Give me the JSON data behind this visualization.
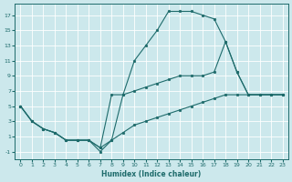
{
  "xlabel": "Humidex (Indice chaleur)",
  "background_color": "#cce8ec",
  "grid_color": "#ffffff",
  "line_color": "#1e6b6b",
  "xlim": [
    -0.5,
    23.5
  ],
  "ylim": [
    -2,
    18.5
  ],
  "xticks": [
    0,
    1,
    2,
    3,
    4,
    5,
    6,
    7,
    8,
    9,
    10,
    11,
    12,
    13,
    14,
    15,
    16,
    17,
    18,
    19,
    20,
    21,
    22,
    23
  ],
  "yticks": [
    -1,
    1,
    3,
    5,
    7,
    9,
    11,
    13,
    15,
    17
  ],
  "curve1_x": [
    0,
    1,
    2,
    3,
    4,
    5,
    6,
    7,
    8,
    9,
    10,
    11,
    12,
    13,
    14,
    15,
    16,
    17,
    18,
    19,
    20,
    21,
    22,
    23
  ],
  "curve1_y": [
    5,
    3,
    2,
    1.5,
    0.5,
    0.5,
    0.5,
    -1,
    0.5,
    6.5,
    11,
    13,
    15,
    17.5,
    17.5,
    17.5,
    17,
    16.5,
    13.5,
    9.5,
    6.5,
    6.5,
    6.5,
    6.5
  ],
  "curve2_x": [
    0,
    1,
    2,
    3,
    4,
    5,
    6,
    7,
    8,
    9,
    10,
    11,
    12,
    13,
    14,
    15,
    16,
    17,
    18,
    19,
    20,
    21,
    22,
    23
  ],
  "curve2_y": [
    5,
    3,
    2,
    1.5,
    0.5,
    0.5,
    0.5,
    -0.5,
    6.5,
    6.5,
    7.0,
    7.5,
    8.0,
    8.5,
    9.0,
    9.0,
    9.0,
    9.5,
    13.5,
    9.5,
    6.5,
    6.5,
    6.5,
    6.5
  ],
  "curve3_x": [
    0,
    1,
    2,
    3,
    4,
    5,
    6,
    7,
    8,
    9,
    10,
    11,
    12,
    13,
    14,
    15,
    16,
    17,
    18,
    19,
    20,
    21,
    22,
    23
  ],
  "curve3_y": [
    5,
    3,
    2,
    1.5,
    0.5,
    0.5,
    0.5,
    -0.5,
    0.5,
    1.5,
    2.5,
    3.0,
    3.5,
    4.0,
    4.5,
    5.0,
    5.5,
    6.0,
    6.5,
    6.5,
    6.5,
    6.5,
    6.5,
    6.5
  ]
}
